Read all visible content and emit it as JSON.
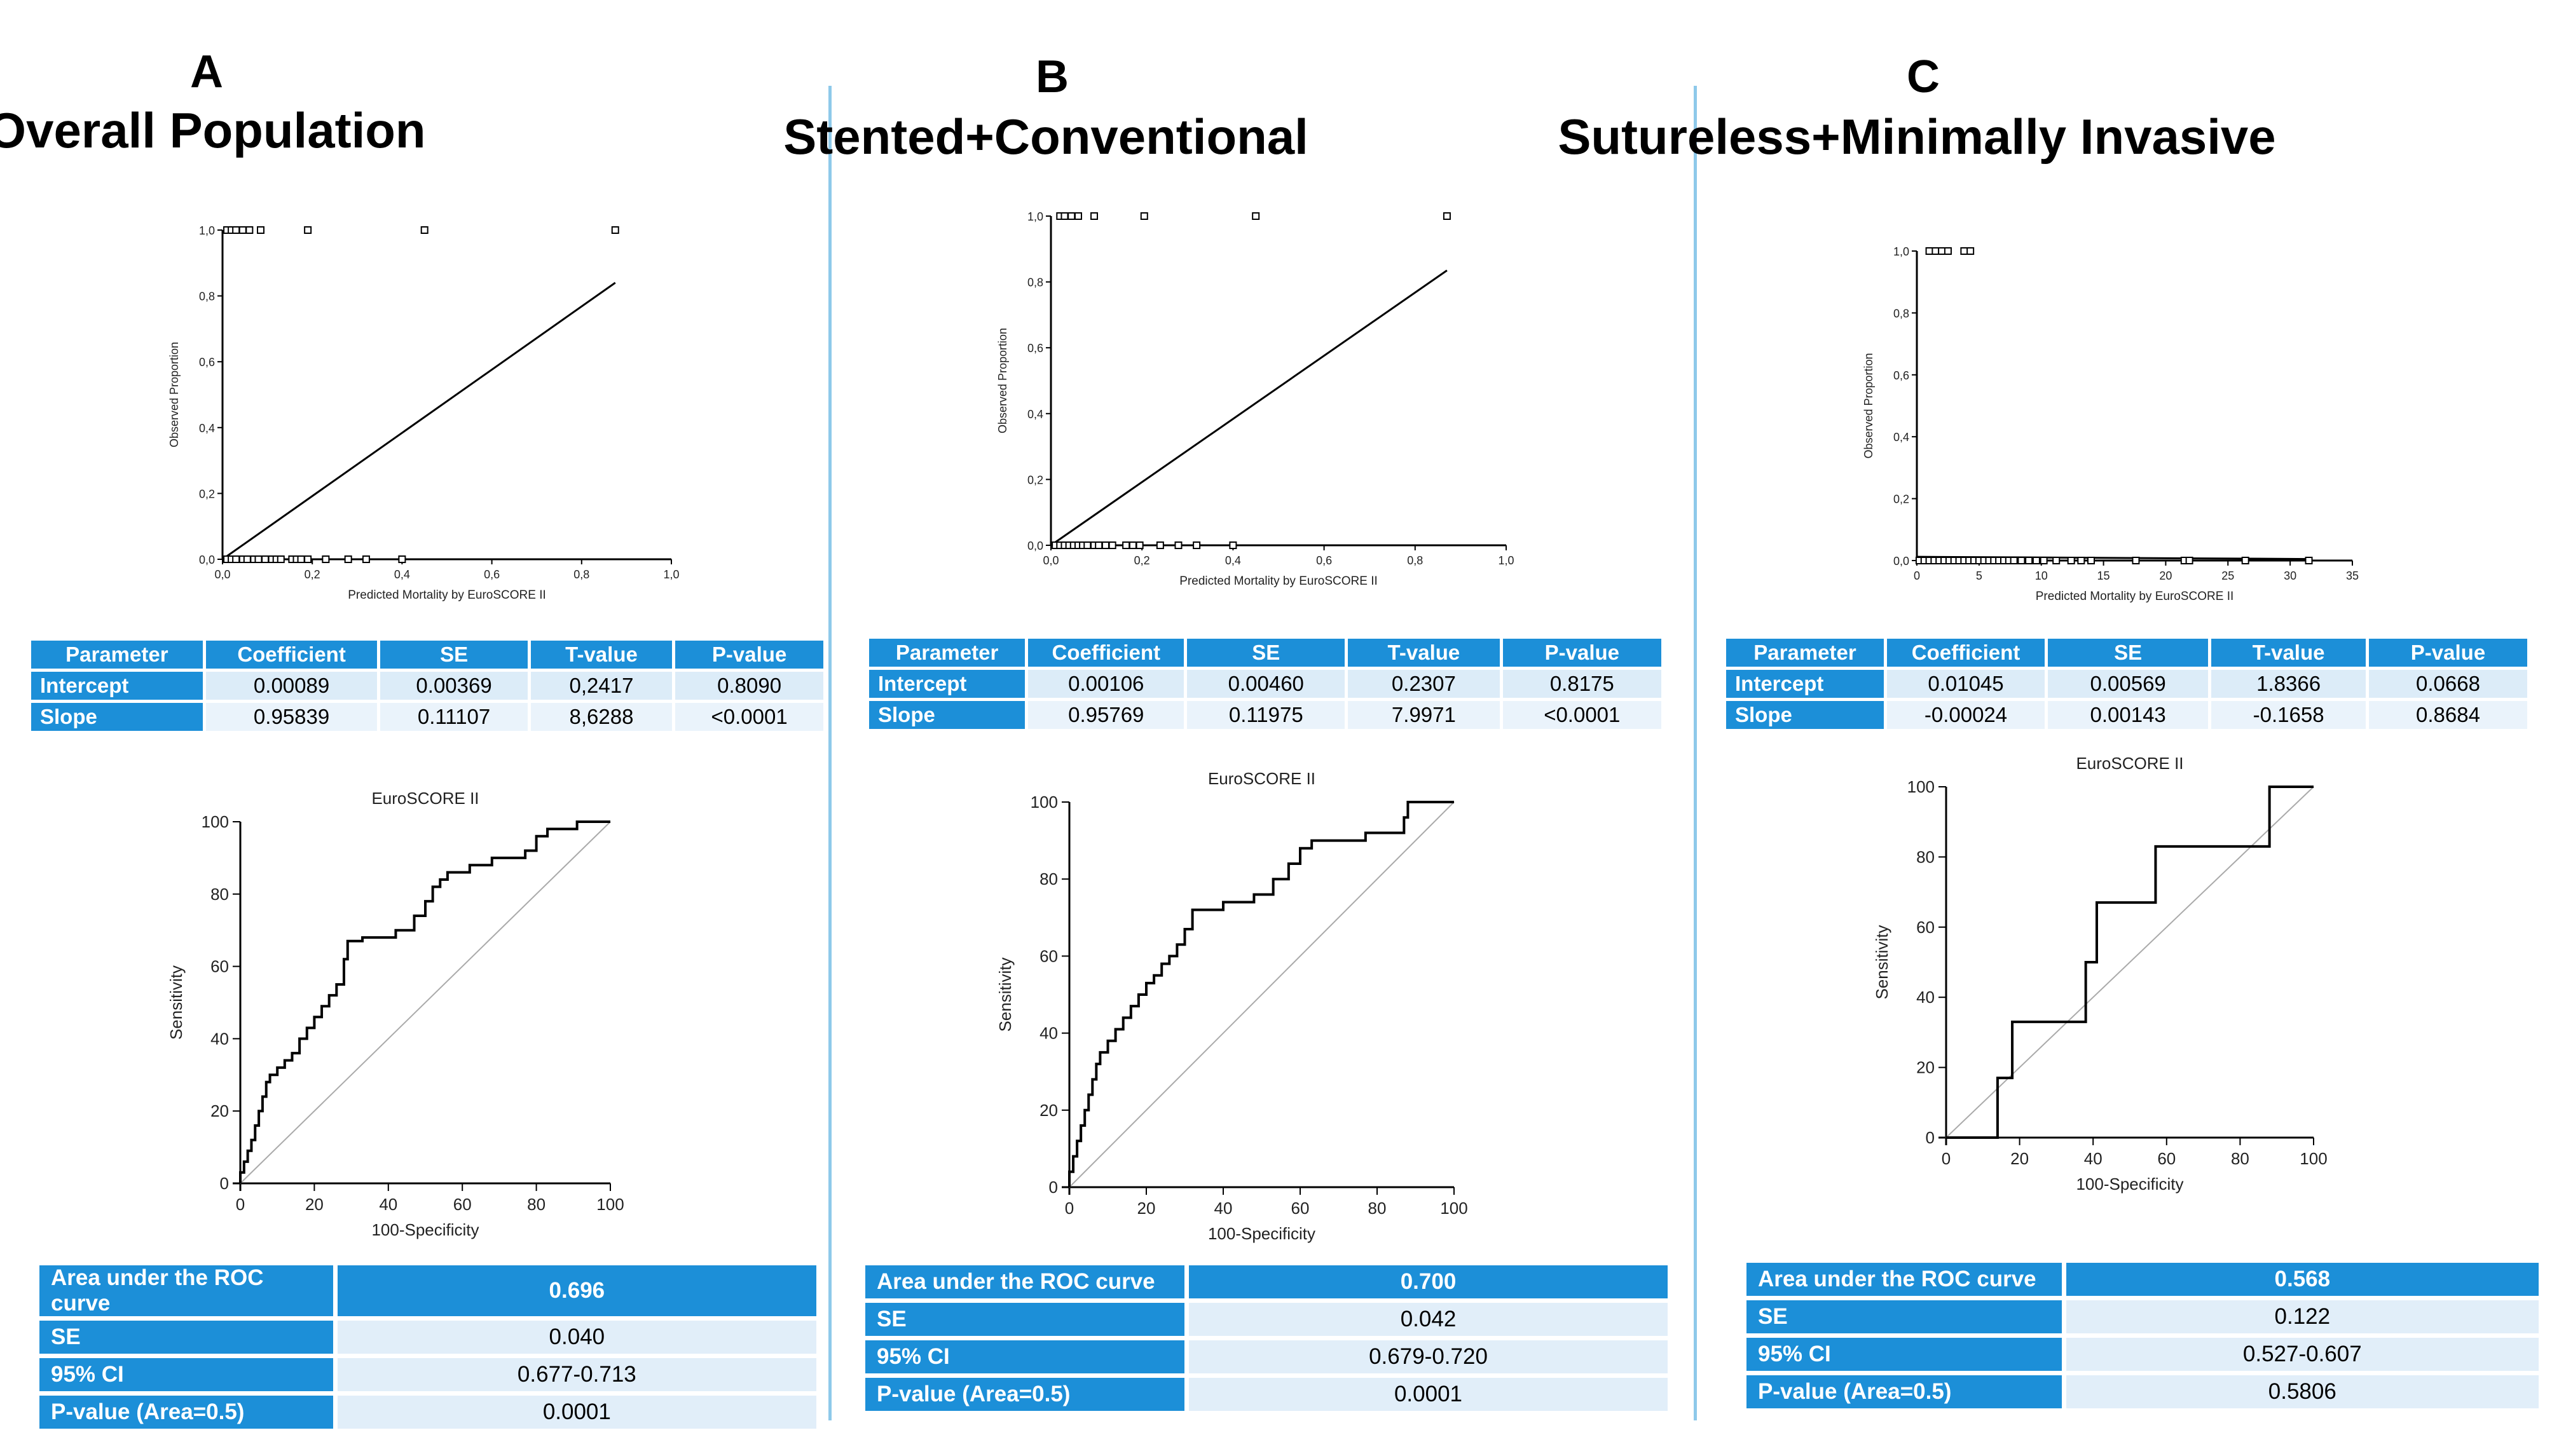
{
  "colors": {
    "header": "#1c8fd8",
    "cell": "#dcecf8",
    "divider": "#8ec9ea"
  },
  "panels": [
    {
      "letter": "A",
      "title": "Overall Population",
      "calib": {
        "xlabel": "Predicted Mortality by EuroSCORE II",
        "ylabel": "Observed Proportion",
        "xlim": [
          0,
          1
        ],
        "ylim": [
          0,
          1
        ],
        "xticks": [
          "0,0",
          "0,2",
          "0,4",
          "0,6",
          "0,8",
          "1,0"
        ],
        "yticks": [
          "0,0",
          "0,2",
          "0,4",
          "0,6",
          "0,8",
          "1,0"
        ],
        "xtick_vals": [
          0,
          0.2,
          0.4,
          0.6,
          0.8,
          1.0
        ],
        "line": [
          [
            0,
            0
          ],
          [
            0.875,
            0.84
          ]
        ],
        "points_top": [
          0.01,
          0.02,
          0.03,
          0.045,
          0.06,
          0.085,
          0.19,
          0.45,
          0.875
        ],
        "points_bottom": [
          0.01,
          0.02,
          0.03,
          0.045,
          0.055,
          0.07,
          0.08,
          0.095,
          0.11,
          0.12,
          0.13,
          0.155,
          0.165,
          0.175,
          0.19,
          0.23,
          0.28,
          0.32,
          0.4
        ]
      },
      "params": {
        "headers": [
          "Parameter",
          "Coefficient",
          "SE",
          "T-value",
          "P-value"
        ],
        "rows": [
          [
            "Intercept",
            "0.00089",
            "0.00369",
            "0,2417",
            "0.8090"
          ],
          [
            "Slope",
            "0.95839",
            "0.11107",
            "8,6288",
            "<0.0001"
          ]
        ]
      },
      "roc": {
        "title": "EuroSCORE II",
        "xlabel": "100-Specificity",
        "ylabel": "Sensitivity",
        "ticks": [
          "0",
          "20",
          "40",
          "60",
          "80",
          "100"
        ],
        "curve": [
          [
            0,
            0
          ],
          [
            0,
            3
          ],
          [
            1,
            3
          ],
          [
            1,
            6
          ],
          [
            2,
            6
          ],
          [
            2,
            9
          ],
          [
            3,
            9
          ],
          [
            3,
            12
          ],
          [
            4,
            12
          ],
          [
            4,
            16
          ],
          [
            5,
            16
          ],
          [
            5,
            20
          ],
          [
            6,
            20
          ],
          [
            6,
            24
          ],
          [
            7,
            24
          ],
          [
            7,
            28
          ],
          [
            8,
            28
          ],
          [
            8,
            30
          ],
          [
            10,
            30
          ],
          [
            10,
            32
          ],
          [
            12,
            32
          ],
          [
            12,
            34
          ],
          [
            14,
            34
          ],
          [
            14,
            36
          ],
          [
            16,
            36
          ],
          [
            16,
            40
          ],
          [
            18,
            40
          ],
          [
            18,
            43
          ],
          [
            20,
            43
          ],
          [
            20,
            46
          ],
          [
            22,
            46
          ],
          [
            22,
            49
          ],
          [
            24,
            49
          ],
          [
            24,
            52
          ],
          [
            26,
            52
          ],
          [
            26,
            55
          ],
          [
            28,
            55
          ],
          [
            28,
            62
          ],
          [
            29,
            62
          ],
          [
            29,
            67
          ],
          [
            33,
            67
          ],
          [
            33,
            68
          ],
          [
            42,
            68
          ],
          [
            42,
            70
          ],
          [
            47,
            70
          ],
          [
            47,
            74
          ],
          [
            50,
            74
          ],
          [
            50,
            78
          ],
          [
            52,
            78
          ],
          [
            52,
            82
          ],
          [
            54,
            82
          ],
          [
            54,
            84
          ],
          [
            56,
            84
          ],
          [
            56,
            86
          ],
          [
            62,
            86
          ],
          [
            62,
            88
          ],
          [
            68,
            88
          ],
          [
            68,
            90
          ],
          [
            77,
            90
          ],
          [
            77,
            92
          ],
          [
            80,
            92
          ],
          [
            80,
            96
          ],
          [
            83,
            96
          ],
          [
            83,
            98
          ],
          [
            91,
            98
          ],
          [
            91,
            100
          ],
          [
            100,
            100
          ]
        ]
      },
      "auc": {
        "rows": [
          [
            "Area under the ROC curve",
            "0.696"
          ],
          [
            "SE",
            "0.040"
          ],
          [
            "95% CI",
            "0.677-0.713"
          ],
          [
            "P-value (Area=0.5)",
            "0.0001"
          ]
        ]
      }
    },
    {
      "letter": "B",
      "title": "Stented+Conventional",
      "calib": {
        "xlabel": "Predicted Mortality by EuroSCORE II",
        "ylabel": "Observed Proportion",
        "xlim": [
          0,
          1
        ],
        "ylim": [
          0,
          1
        ],
        "xticks": [
          "0,0",
          "0,2",
          "0,4",
          "0,6",
          "0,8",
          "1,0"
        ],
        "yticks": [
          "0,0",
          "0,2",
          "0,4",
          "0,6",
          "0,8",
          "1,0"
        ],
        "xtick_vals": [
          0,
          0.2,
          0.4,
          0.6,
          0.8,
          1.0
        ],
        "line": [
          [
            0,
            0
          ],
          [
            0.87,
            0.835
          ]
        ],
        "points_top": [
          0.02,
          0.03,
          0.045,
          0.06,
          0.095,
          0.205,
          0.45,
          0.87
        ],
        "points_bottom": [
          0.01,
          0.02,
          0.03,
          0.04,
          0.05,
          0.06,
          0.07,
          0.08,
          0.095,
          0.105,
          0.12,
          0.135,
          0.165,
          0.18,
          0.195,
          0.24,
          0.28,
          0.32,
          0.4
        ]
      },
      "params": {
        "headers": [
          "Parameter",
          "Coefficient",
          "SE",
          "T-value",
          "P-value"
        ],
        "rows": [
          [
            "Intercept",
            "0.00106",
            "0.00460",
            "0.2307",
            "0.8175"
          ],
          [
            "Slope",
            "0.95769",
            "0.11975",
            "7.9971",
            "<0.0001"
          ]
        ]
      },
      "roc": {
        "title": "EuroSCORE II",
        "xlabel": "100-Specificity",
        "ylabel": "Sensitivity",
        "ticks": [
          "0",
          "20",
          "40",
          "60",
          "80",
          "100"
        ],
        "curve": [
          [
            0,
            0
          ],
          [
            0,
            4
          ],
          [
            1,
            4
          ],
          [
            1,
            8
          ],
          [
            2,
            8
          ],
          [
            2,
            12
          ],
          [
            3,
            12
          ],
          [
            3,
            16
          ],
          [
            4,
            16
          ],
          [
            4,
            20
          ],
          [
            5,
            20
          ],
          [
            5,
            24
          ],
          [
            6,
            24
          ],
          [
            6,
            28
          ],
          [
            7,
            28
          ],
          [
            7,
            32
          ],
          [
            8,
            32
          ],
          [
            8,
            35
          ],
          [
            10,
            35
          ],
          [
            10,
            38
          ],
          [
            12,
            38
          ],
          [
            12,
            41
          ],
          [
            14,
            41
          ],
          [
            14,
            44
          ],
          [
            16,
            44
          ],
          [
            16,
            47
          ],
          [
            18,
            47
          ],
          [
            18,
            50
          ],
          [
            20,
            50
          ],
          [
            20,
            53
          ],
          [
            22,
            53
          ],
          [
            22,
            55
          ],
          [
            24,
            55
          ],
          [
            24,
            58
          ],
          [
            26,
            58
          ],
          [
            26,
            60
          ],
          [
            28,
            60
          ],
          [
            28,
            63
          ],
          [
            30,
            63
          ],
          [
            30,
            67
          ],
          [
            32,
            67
          ],
          [
            32,
            72
          ],
          [
            40,
            72
          ],
          [
            40,
            74
          ],
          [
            48,
            74
          ],
          [
            48,
            76
          ],
          [
            53,
            76
          ],
          [
            53,
            80
          ],
          [
            57,
            80
          ],
          [
            57,
            84
          ],
          [
            60,
            84
          ],
          [
            60,
            88
          ],
          [
            63,
            88
          ],
          [
            63,
            90
          ],
          [
            77,
            90
          ],
          [
            77,
            92
          ],
          [
            87,
            92
          ],
          [
            87,
            96
          ],
          [
            88,
            96
          ],
          [
            88,
            100
          ],
          [
            100,
            100
          ]
        ]
      },
      "auc": {
        "rows": [
          [
            "Area under the ROC curve",
            "0.700"
          ],
          [
            "SE",
            "0.042"
          ],
          [
            "95% CI",
            "0.679-0.720"
          ],
          [
            "P-value (Area=0.5)",
            "0.0001"
          ]
        ]
      }
    },
    {
      "letter": "C",
      "title": "Sutureless+Minimally Invasive",
      "calib": {
        "xlabel": "Predicted Mortality by EuroSCORE II",
        "ylabel": "Observed Proportion",
        "xlim": [
          0,
          35
        ],
        "ylim": [
          0,
          1
        ],
        "xticks": [
          "0",
          "5",
          "10",
          "15",
          "20",
          "25",
          "30",
          "35"
        ],
        "yticks": [
          "0,0",
          "0,2",
          "0,4",
          "0,6",
          "0,8",
          "1,0"
        ],
        "xtick_vals": [
          0,
          5,
          10,
          15,
          20,
          25,
          30,
          35
        ],
        "line": [
          [
            0,
            0.012
          ],
          [
            31.5,
            0.005
          ]
        ],
        "points_top": [
          1.0,
          1.5,
          2.0,
          2.5,
          3.8,
          4.3
        ],
        "points_bottom": [
          0.2,
          0.6,
          1.0,
          1.4,
          1.8,
          2.2,
          2.6,
          3.0,
          3.4,
          3.8,
          4.2,
          4.6,
          5.0,
          5.4,
          5.8,
          6.2,
          6.6,
          7.0,
          7.4,
          7.8,
          8.4,
          9.0,
          9.6,
          10.2,
          11.2,
          12.4,
          13.2,
          14.0,
          17.6,
          21.5,
          21.9,
          26.4,
          31.5
        ]
      },
      "params": {
        "headers": [
          "Parameter",
          "Coefficient",
          "SE",
          "T-value",
          "P-value"
        ],
        "rows": [
          [
            "Intercept",
            "0.01045",
            "0.00569",
            "1.8366",
            "0.0668"
          ],
          [
            "Slope",
            "-0.00024",
            "0.00143",
            "-0.1658",
            "0.8684"
          ]
        ]
      },
      "roc": {
        "title": "EuroSCORE II",
        "xlabel": "100-Specificity",
        "ylabel": "Sensitivity",
        "ticks": [
          "0",
          "20",
          "40",
          "60",
          "80",
          "100"
        ],
        "curve": [
          [
            0,
            0
          ],
          [
            14,
            0
          ],
          [
            14,
            17
          ],
          [
            18,
            17
          ],
          [
            18,
            33
          ],
          [
            38,
            33
          ],
          [
            38,
            50
          ],
          [
            41,
            50
          ],
          [
            41,
            67
          ],
          [
            57,
            67
          ],
          [
            57,
            83
          ],
          [
            88,
            83
          ],
          [
            88,
            100
          ],
          [
            100,
            100
          ]
        ]
      },
      "auc": {
        "rows": [
          [
            "Area under the ROC curve",
            "0.568"
          ],
          [
            "SE",
            "0.122"
          ],
          [
            "95% CI",
            "0.527-0.607"
          ],
          [
            "P-value (Area=0.5)",
            "0.5806"
          ]
        ]
      }
    }
  ],
  "chart_data": [
    {
      "type": "scatter",
      "title": "A Overall Population — calibration",
      "xlabel": "Predicted Mortality by EuroSCORE II",
      "ylabel": "Observed Proportion",
      "xlim": [
        0,
        1
      ],
      "ylim": [
        0,
        1
      ],
      "series": [
        {
          "name": "observed=1",
          "x": [
            0.01,
            0.02,
            0.03,
            0.045,
            0.06,
            0.085,
            0.19,
            0.45,
            0.875
          ],
          "y": 1
        },
        {
          "name": "observed=0",
          "x": [
            0.01,
            0.02,
            0.03,
            0.045,
            0.055,
            0.07,
            0.08,
            0.095,
            0.11,
            0.12,
            0.13,
            0.155,
            0.165,
            0.175,
            0.19,
            0.23,
            0.28,
            0.32,
            0.4
          ],
          "y": 0
        },
        {
          "name": "fit",
          "x": [
            0,
            0.875
          ],
          "y": [
            0,
            0.84
          ]
        }
      ]
    },
    {
      "type": "line",
      "title": "A Overall Population — ROC EuroSCORE II",
      "xlabel": "100-Specificity",
      "ylabel": "Sensitivity",
      "xlim": [
        0,
        100
      ],
      "ylim": [
        0,
        100
      ],
      "auc": 0.696
    },
    {
      "type": "scatter",
      "title": "B Stented+Conventional — calibration",
      "xlabel": "Predicted Mortality by EuroSCORE II",
      "ylabel": "Observed Proportion",
      "xlim": [
        0,
        1
      ],
      "ylim": [
        0,
        1
      ],
      "series": [
        {
          "name": "fit",
          "x": [
            0,
            0.87
          ],
          "y": [
            0,
            0.835
          ]
        }
      ]
    },
    {
      "type": "line",
      "title": "B Stented+Conventional — ROC EuroSCORE II",
      "xlabel": "100-Specificity",
      "ylabel": "Sensitivity",
      "xlim": [
        0,
        100
      ],
      "ylim": [
        0,
        100
      ],
      "auc": 0.7
    },
    {
      "type": "scatter",
      "title": "C Sutureless+Minimally Invasive — calibration",
      "xlabel": "Predicted Mortality by EuroSCORE II",
      "ylabel": "Observed Proportion",
      "xlim": [
        0,
        35
      ],
      "ylim": [
        0,
        1
      ],
      "series": [
        {
          "name": "fit",
          "x": [
            0,
            31.5
          ],
          "y": [
            0.012,
            0.005
          ]
        }
      ]
    },
    {
      "type": "line",
      "title": "C Sutureless+Minimally Invasive — ROC EuroSCORE II",
      "xlabel": "100-Specificity",
      "ylabel": "Sensitivity",
      "xlim": [
        0,
        100
      ],
      "ylim": [
        0,
        100
      ],
      "auc": 0.568
    }
  ]
}
